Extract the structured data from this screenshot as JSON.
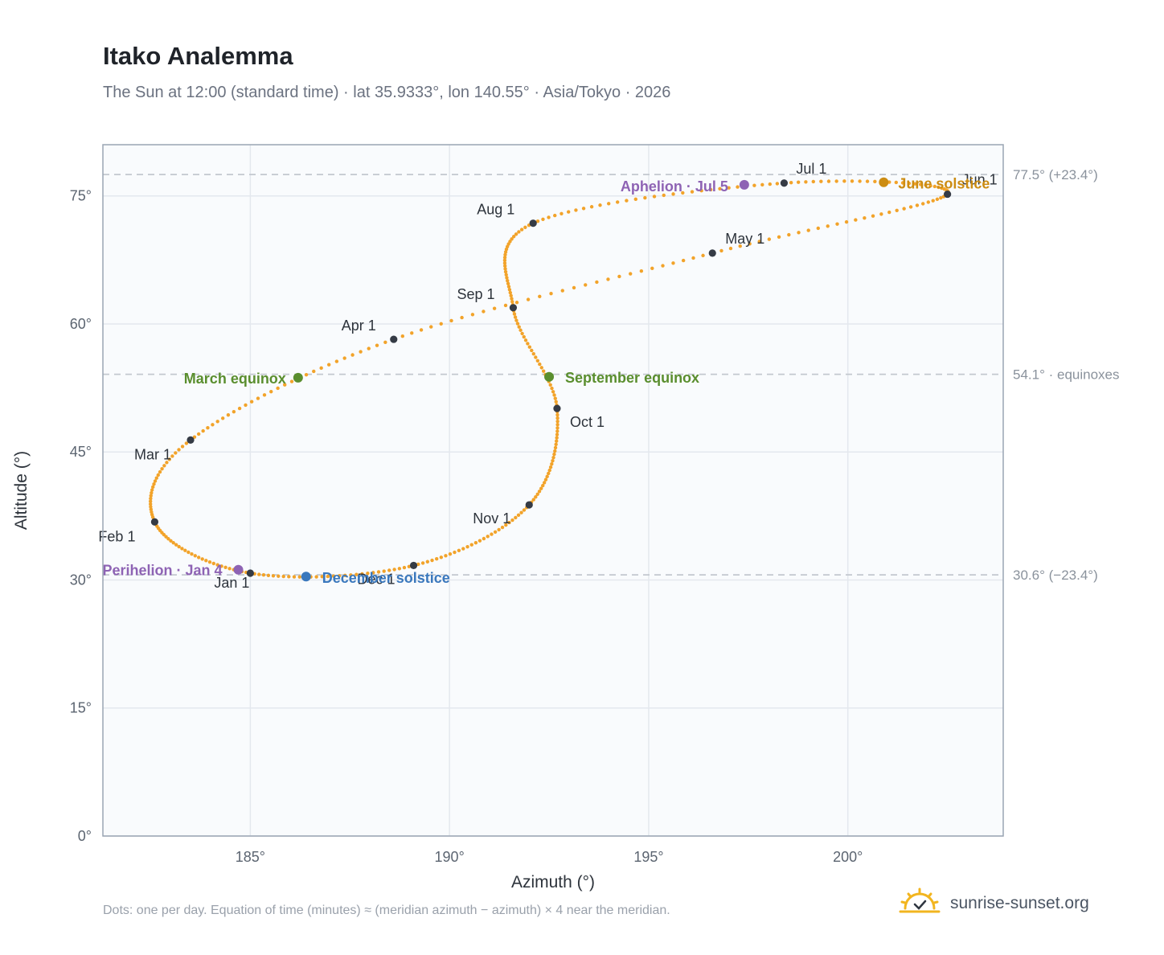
{
  "header": {
    "title": "Itako Analemma",
    "subtitle": "The Sun at 12:00 (standard time) · lat 35.9333°, lon 140.55° · Asia/Tokyo · 2026"
  },
  "footer": {
    "note": "Dots: one per day. Equation of time (minutes) ≈ (meridian azimuth − azimuth) × 4 near the meridian.",
    "brand": "sunrise-sunset.org",
    "brand_icon": "sun-logo-icon"
  },
  "colors": {
    "path": "#f2a32a",
    "month_marker": "#353b45",
    "equinox": "#5a8e2e",
    "june_solstice": "#cc8c12",
    "december_solstice": "#3a78bd",
    "apsis": "#8e63b4",
    "reference_line": "#c3c8cf",
    "plot_background": "#f9fbfd",
    "grid": "#e4e8ee",
    "frame": "#9aa5b3"
  },
  "chart_data": {
    "type": "scatter",
    "title": "Itako Analemma",
    "xlabel": "Azimuth (°)",
    "ylabel": "Altitude (°)",
    "xlim": [
      181.3,
      203.9
    ],
    "ylim": [
      0,
      81
    ],
    "x_ticks": [
      185,
      190,
      195,
      200
    ],
    "x_tick_labels": [
      "185°",
      "190°",
      "195°",
      "200°"
    ],
    "y_ticks": [
      0,
      15,
      30,
      45,
      60,
      75
    ],
    "y_tick_labels": [
      "0°",
      "15°",
      "30°",
      "45°",
      "60°",
      "75°"
    ],
    "grid": true,
    "series": [
      {
        "marker": "one dot per day",
        "monthly_points": [
          {
            "label": "Jan 1",
            "x": 185.0,
            "y": 30.8
          },
          {
            "label": "Feb 1",
            "x": 182.6,
            "y": 36.8
          },
          {
            "label": "Mar 1",
            "x": 183.5,
            "y": 46.4
          },
          {
            "label": "Apr 1",
            "x": 188.6,
            "y": 58.2
          },
          {
            "label": "May 1",
            "x": 196.6,
            "y": 68.3
          },
          {
            "label": "Jun 1",
            "x": 202.5,
            "y": 75.2
          },
          {
            "label": "Jul 1",
            "x": 198.4,
            "y": 76.5
          },
          {
            "label": "Aug 1",
            "x": 192.1,
            "y": 71.8
          },
          {
            "label": "Sep 1",
            "x": 191.6,
            "y": 61.9
          },
          {
            "label": "Oct 1",
            "x": 192.7,
            "y": 50.1
          },
          {
            "label": "Nov 1",
            "x": 192.0,
            "y": 38.8
          },
          {
            "label": "Dec 1",
            "x": 189.1,
            "y": 31.7
          }
        ]
      }
    ],
    "events": [
      {
        "label": "March equinox",
        "x": 186.2,
        "y": 53.7,
        "color_key": "equinox"
      },
      {
        "label": "June solstice",
        "x": 200.9,
        "y": 76.6,
        "color_key": "june_solstice"
      },
      {
        "label": "September equinox",
        "x": 192.5,
        "y": 53.8,
        "color_key": "equinox"
      },
      {
        "label": "December solstice",
        "x": 186.4,
        "y": 30.4,
        "color_key": "december_solstice"
      },
      {
        "label": "Perihelion · Jan 4",
        "x": 184.7,
        "y": 31.2,
        "color_key": "apsis"
      },
      {
        "label": "Aphelion · Jul 5",
        "x": 197.4,
        "y": 76.3,
        "color_key": "apsis"
      }
    ],
    "reference_lines": [
      {
        "y": 77.5,
        "label": "77.5° (+23.4°)"
      },
      {
        "y": 54.1,
        "label": "54.1° · equinoxes"
      },
      {
        "y": 30.6,
        "label": "30.6° (−23.4°)"
      }
    ]
  }
}
